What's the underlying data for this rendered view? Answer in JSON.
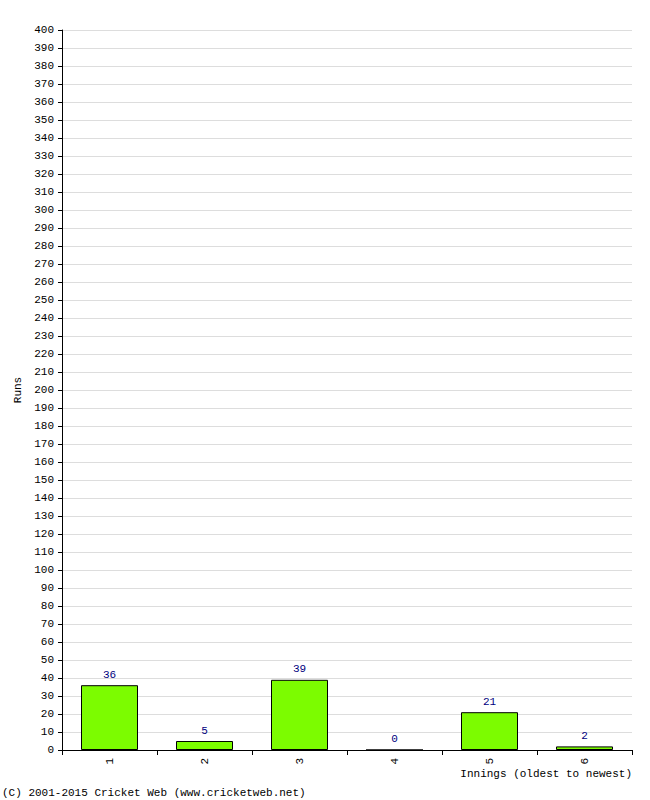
{
  "chart_data": {
    "type": "bar",
    "x_label": "Innings (oldest to newest)",
    "y_label": "Runs",
    "annotations": [
      "(C) 2001-2015 Cricket Web (www.cricketweb.net)"
    ],
    "categories": [
      "1",
      "2",
      "3",
      "4",
      "5",
      "6"
    ],
    "values": [
      36,
      5,
      39,
      0,
      21,
      2
    ],
    "color": "#7cfc00",
    "ylim": [
      0,
      400
    ],
    "yticks": [
      0,
      10,
      20,
      30,
      40,
      50,
      60,
      70,
      80,
      90,
      100,
      110,
      120,
      130,
      140,
      150,
      160,
      170,
      180,
      190,
      200,
      210,
      220,
      230,
      240,
      250,
      260,
      270,
      280,
      290,
      300,
      310,
      320,
      330,
      340,
      350,
      360,
      370,
      380,
      390,
      400
    ],
    "grid": true,
    "data_labels": true
  }
}
